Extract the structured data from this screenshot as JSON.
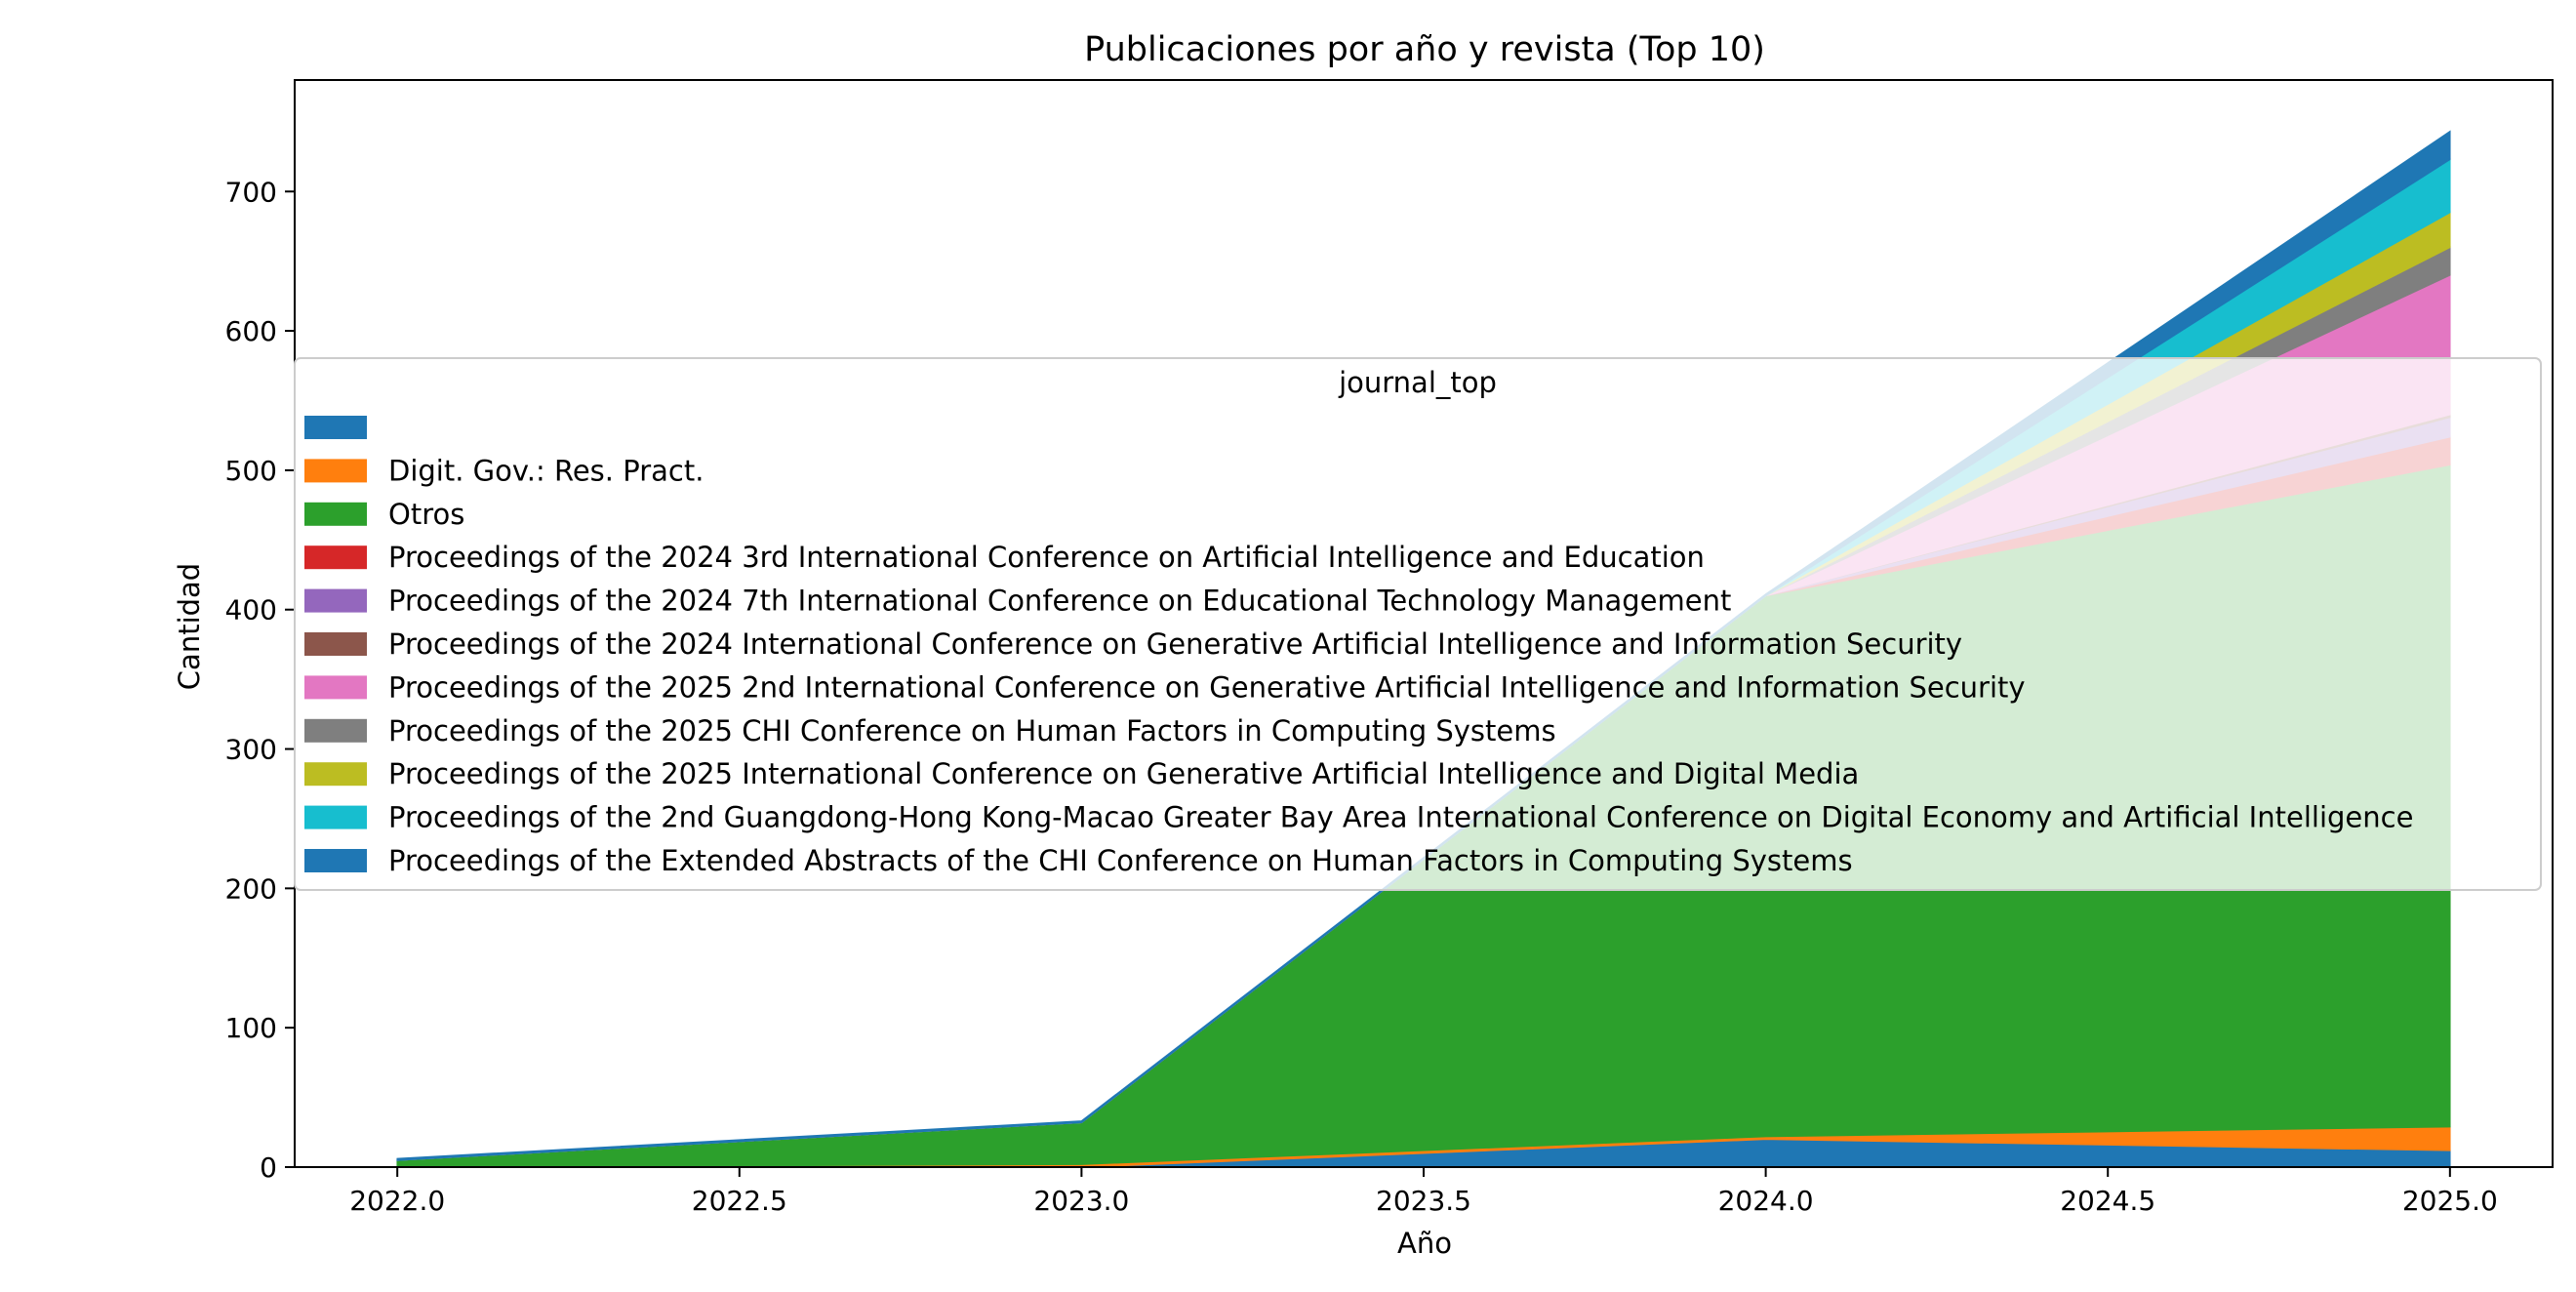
{
  "chart_data": {
    "type": "area",
    "title": "Publicaciones por año y revista (Top 10)",
    "xlabel": "Año",
    "ylabel": "Cantidad",
    "x": [
      2022,
      2023,
      2024,
      2025
    ],
    "xlim": [
      2021.85,
      2025.15
    ],
    "ylim": [
      0,
      780
    ],
    "x_ticks": [
      "2022.0",
      "2022.5",
      "2023.0",
      "2023.5",
      "2024.0",
      "2024.5",
      "2025.0"
    ],
    "y_ticks": [
      "0",
      "100",
      "200",
      "300",
      "400",
      "500",
      "600",
      "700"
    ],
    "grid": false,
    "stacked": true,
    "legend": {
      "title": "journal_top",
      "placement": "center-right"
    },
    "series": [
      {
        "name": "",
        "color": "#1f77b4",
        "values": [
          0,
          0,
          20,
          12
        ]
      },
      {
        "name": "Digit. Gov.: Res. Pract.",
        "color": "#ff7f0e",
        "values": [
          0,
          2,
          2,
          17
        ]
      },
      {
        "name": "Otros",
        "color": "#2ca02c",
        "values": [
          5,
          30,
          388,
          475
        ]
      },
      {
        "name": "Proceedings of the 2024 3rd International Conference on Artificial Intelligence and Education",
        "color": "#d62728",
        "values": [
          0,
          0,
          0,
          20
        ]
      },
      {
        "name": "Proceedings of the 2024 7th International Conference on Educational Technology Management",
        "color": "#9467bd",
        "values": [
          0,
          0,
          0,
          14
        ]
      },
      {
        "name": "Proceedings of the 2024 International Conference on Generative Artificial Intelligence and Information Security",
        "color": "#8c564b",
        "values": [
          0,
          0,
          0,
          2
        ]
      },
      {
        "name": "Proceedings of the 2025 2nd International Conference on Generative Artificial Intelligence and Information Security",
        "color": "#e377c2",
        "values": [
          0,
          0,
          0,
          100
        ]
      },
      {
        "name": "Proceedings of the 2025 CHI Conference on Human Factors in Computing Systems",
        "color": "#7f7f7f",
        "values": [
          0,
          0,
          0,
          20
        ]
      },
      {
        "name": "Proceedings of the 2025 International Conference on Generative Artificial Intelligence and Digital Media",
        "color": "#bcbd22",
        "values": [
          0,
          0,
          0,
          25
        ]
      },
      {
        "name": "Proceedings of the 2nd Guangdong-Hong Kong-Macao Greater Bay Area International Conference on Digital Economy and Artificial Intelligence",
        "color": "#17becf",
        "values": [
          0,
          0,
          0,
          38
        ]
      },
      {
        "name": "Proceedings of the Extended Abstracts of the CHI Conference on Human Factors in Computing Systems",
        "color": "#1f77b4",
        "values": [
          1,
          1,
          1,
          20
        ]
      }
    ]
  }
}
